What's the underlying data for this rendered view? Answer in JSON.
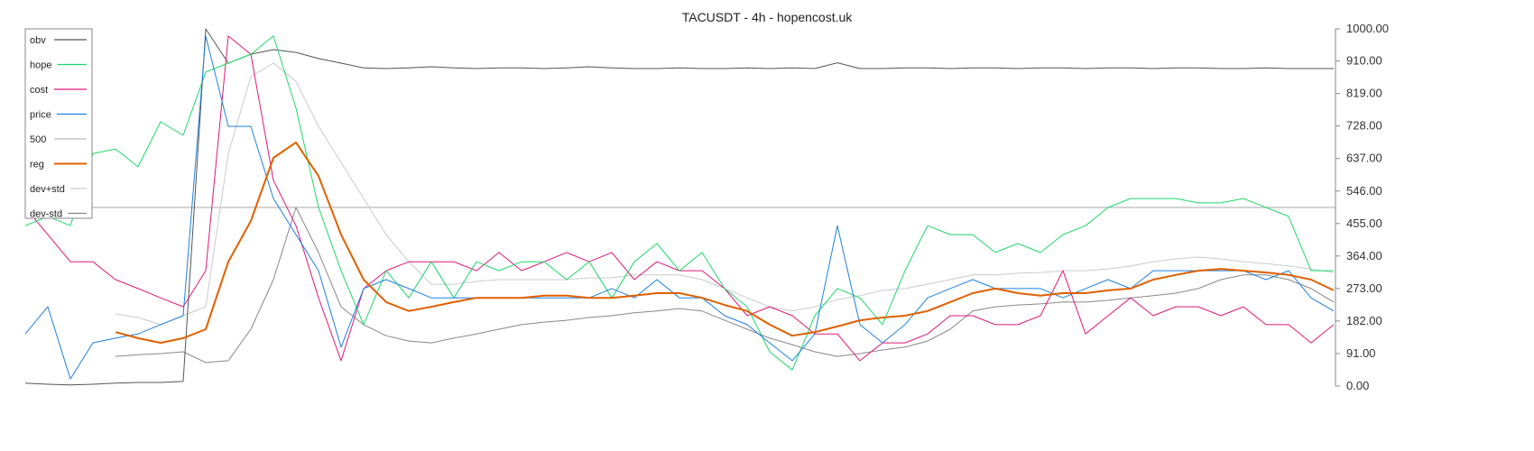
{
  "chart_data": {
    "type": "line",
    "title": "TACUSDT - 4h - hopencost.uk",
    "xlabel": "",
    "ylabel": "",
    "ylim": [
      0,
      1000
    ],
    "y_ticks": [
      "0.00",
      "91.00",
      "182.00",
      "273.00",
      "364.00",
      "455.00",
      "546.00",
      "637.00",
      "728.00",
      "819.00",
      "910.00",
      "1000.00"
    ],
    "y_axis_position": "right",
    "grid": false,
    "legend_position": "top-left",
    "x": [
      0,
      1,
      2,
      3,
      4,
      5,
      6,
      7,
      8,
      9,
      10,
      11,
      12,
      13,
      14,
      15,
      16,
      17,
      18,
      19,
      20,
      21,
      22,
      23,
      24,
      25,
      26,
      27,
      28,
      29,
      30,
      31,
      32,
      33,
      34,
      35,
      36,
      37,
      38,
      39,
      40,
      41,
      42,
      43,
      44,
      45,
      46,
      47,
      48,
      49,
      50,
      51,
      52,
      53,
      54,
      55,
      56,
      57,
      58
    ],
    "series": [
      {
        "name": "obv",
        "color": "#555555",
        "width": 1,
        "values": [
          8,
          5,
          3,
          5,
          8,
          10,
          10,
          13,
          1000,
          904,
          929,
          942,
          934,
          917,
          904,
          891,
          889,
          891,
          894,
          891,
          889,
          891,
          891,
          889,
          891,
          894,
          891,
          889,
          889,
          891,
          889,
          889,
          891,
          889,
          891,
          889,
          905,
          889,
          889,
          891,
          891,
          889,
          891,
          891,
          889,
          891,
          891,
          889,
          891,
          891,
          889,
          891,
          891,
          889,
          889,
          891,
          889,
          889,
          889
        ]
      },
      {
        "name": "hope",
        "color": "#1fd869",
        "width": 1,
        "values": [
          449,
          475,
          449,
          651,
          664,
          614,
          740,
          702,
          879,
          904,
          929,
          980,
          778,
          500,
          323,
          172,
          323,
          247,
          348,
          247,
          348,
          323,
          348,
          348,
          298,
          348,
          247,
          348,
          399,
          323,
          374,
          273,
          222,
          96,
          45,
          197,
          273,
          247,
          172,
          323,
          449,
          424,
          424,
          374,
          399,
          374,
          424,
          449,
          500,
          525,
          525,
          525,
          513,
          513,
          525,
          500,
          475,
          323,
          323
        ]
      },
      {
        "name": "cost",
        "color": "#e0187a",
        "width": 1,
        "values": [
          500,
          424,
          348,
          348,
          298,
          273,
          247,
          222,
          323,
          980,
          929,
          576,
          449,
          247,
          71,
          273,
          323,
          348,
          348,
          348,
          323,
          374,
          323,
          348,
          374,
          348,
          374,
          298,
          348,
          323,
          323,
          273,
          197,
          222,
          197,
          146,
          146,
          71,
          121,
          121,
          146,
          197,
          197,
          172,
          172,
          197,
          323,
          146,
          197,
          247,
          197,
          222,
          222,
          197,
          222,
          172,
          172,
          121,
          172
        ]
      },
      {
        "name": "price",
        "color": "#1e80e0",
        "width": 1,
        "values": [
          146,
          222,
          20,
          121,
          134,
          146,
          172,
          197,
          980,
          727,
          727,
          525,
          424,
          323,
          109,
          273,
          298,
          273,
          247,
          247,
          247,
          247,
          247,
          247,
          247,
          247,
          273,
          247,
          298,
          247,
          247,
          197,
          172,
          121,
          71,
          146,
          449,
          172,
          121,
          172,
          247,
          273,
          298,
          273,
          273,
          273,
          247,
          273,
          298,
          273,
          323,
          323,
          323,
          323,
          323,
          298,
          323,
          247,
          210
        ]
      },
      {
        "name": "500",
        "color": "#bbbbbb",
        "width": 1.2,
        "values": [
          500,
          500,
          500,
          500,
          500,
          500,
          500,
          500,
          500,
          500,
          500,
          500,
          500,
          500,
          500,
          500,
          500,
          500,
          500,
          500,
          500,
          500,
          500,
          500,
          500,
          500,
          500,
          500,
          500,
          500,
          500,
          500,
          500,
          500,
          500,
          500,
          500,
          500,
          500,
          500,
          500,
          500,
          500,
          500,
          500,
          500,
          500,
          500,
          500,
          500,
          500,
          500,
          500,
          500,
          500,
          500,
          500,
          500,
          500
        ]
      },
      {
        "name": "reg",
        "color": "#e06000",
        "width": 2,
        "values": [
          null,
          null,
          null,
          null,
          151,
          134,
          121,
          134,
          159,
          348,
          462,
          639,
          682,
          588,
          424,
          298,
          235,
          210,
          222,
          235,
          247,
          247,
          247,
          253,
          253,
          247,
          247,
          253,
          260,
          260,
          247,
          227,
          210,
          172,
          141,
          151,
          167,
          184,
          192,
          197,
          210,
          235,
          260,
          273,
          260,
          253,
          260,
          260,
          268,
          273,
          298,
          311,
          323,
          328,
          323,
          318,
          311,
          298,
          268
        ]
      },
      {
        "name": "dev+std",
        "color": "#c8cbce",
        "width": 1,
        "values": [
          null,
          null,
          null,
          null,
          202,
          192,
          172,
          197,
          222,
          651,
          866,
          904,
          853,
          727,
          626,
          525,
          424,
          348,
          285,
          285,
          293,
          298,
          298,
          298,
          298,
          303,
          303,
          311,
          311,
          311,
          298,
          273,
          247,
          222,
          210,
          222,
          242,
          253,
          268,
          273,
          285,
          298,
          311,
          311,
          316,
          318,
          323,
          323,
          328,
          336,
          348,
          356,
          361,
          356,
          348,
          343,
          336,
          328,
          318
        ]
      },
      {
        "name": "dev-std",
        "color": "#888888",
        "width": 1,
        "values": [
          null,
          null,
          null,
          null,
          83,
          88,
          91,
          96,
          66,
          71,
          159,
          298,
          500,
          374,
          222,
          172,
          141,
          126,
          121,
          134,
          146,
          159,
          172,
          179,
          184,
          192,
          197,
          205,
          210,
          217,
          210,
          184,
          159,
          134,
          116,
          96,
          83,
          91,
          101,
          109,
          126,
          159,
          210,
          222,
          227,
          230,
          235,
          235,
          240,
          247,
          253,
          260,
          273,
          298,
          311,
          311,
          298,
          273,
          235
        ]
      }
    ]
  }
}
